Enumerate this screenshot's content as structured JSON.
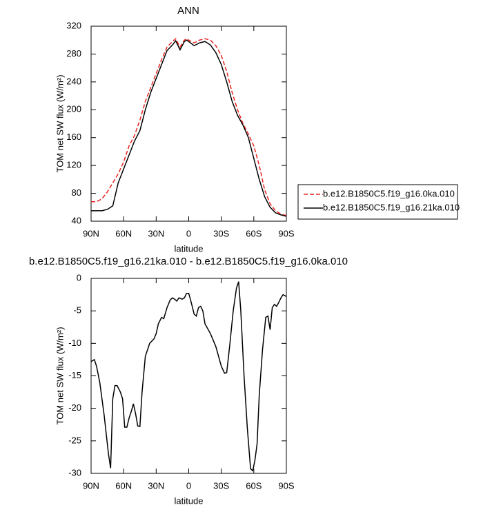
{
  "chart_data": [
    {
      "type": "line",
      "title": "ANN",
      "xlabel": "latitude",
      "ylabel": "TOM net SW flux (W/m²)",
      "x": [
        90,
        85,
        80,
        75,
        70,
        65,
        60,
        55,
        50,
        45,
        40,
        35,
        30,
        25,
        20,
        15,
        12,
        8,
        4,
        2,
        0,
        -5,
        -10,
        -15,
        -20,
        -25,
        -30,
        -35,
        -40,
        -45,
        -50,
        -55,
        -60,
        -65,
        -70,
        -75,
        -80,
        -85,
        -90
      ],
      "xlim": [
        90,
        -90
      ],
      "xticks": [
        {
          "value": 90,
          "label": "90N"
        },
        {
          "value": 60,
          "label": "60N"
        },
        {
          "value": 30,
          "label": "30N"
        },
        0,
        {
          "value": -30,
          "label": "30S"
        },
        {
          "value": -60,
          "label": "60S"
        },
        {
          "value": -90,
          "label": "90S"
        }
      ],
      "ylim": [
        40,
        320
      ],
      "yticks": [
        40,
        80,
        120,
        160,
        200,
        240,
        280,
        320
      ],
      "legend": "right",
      "series": [
        {
          "name": "b.e12.B1850C5.f19_g16.0ka.010",
          "color": "#e8231f",
          "linestyle": "dashed",
          "values": [
            68,
            68,
            72,
            82,
            95,
            108,
            125,
            148,
            163,
            185,
            212,
            232,
            252,
            272,
            290,
            298,
            302,
            290,
            300,
            302,
            300,
            296,
            300,
            302,
            300,
            292,
            278,
            255,
            225,
            200,
            180,
            165,
            148,
            120,
            85,
            65,
            55,
            50,
            48
          ]
        },
        {
          "name": "b.e12.B1850C5.f19_g16.21ka.010",
          "color": "#000000",
          "linestyle": "solid",
          "values": [
            55,
            55,
            55,
            57,
            62,
            95,
            115,
            135,
            155,
            170,
            200,
            225,
            245,
            265,
            285,
            293,
            299,
            286,
            298,
            300,
            298,
            292,
            296,
            298,
            293,
            282,
            265,
            240,
            212,
            192,
            178,
            160,
            130,
            100,
            75,
            60,
            52,
            49,
            47
          ]
        }
      ]
    },
    {
      "type": "line",
      "title": "b.e12.B1850C5.f19_g16.21ka.010 - b.e12.B1850C5.f19_g16.0ka.010",
      "xlabel": "latitude",
      "ylabel": "TOM net SW flux (W/m²)",
      "x": [
        90,
        87,
        85,
        82,
        78,
        74,
        72,
        70,
        68,
        66,
        63,
        61,
        59,
        57,
        55,
        53,
        51,
        49,
        47,
        45,
        43,
        40,
        36,
        32,
        30,
        28,
        25,
        23,
        20,
        17,
        15,
        13,
        11,
        9,
        6,
        4,
        2,
        0,
        -2,
        -5,
        -7,
        -9,
        -11,
        -13,
        -15,
        -20,
        -25,
        -30,
        -33,
        -35,
        -38,
        -41,
        -44,
        -46,
        -48,
        -51,
        -54,
        -57,
        -59,
        -61,
        -63,
        -65,
        -68,
        -71,
        -73,
        -75,
        -77,
        -79,
        -81,
        -83,
        -85,
        -87,
        -90
      ],
      "xlim": [
        90,
        -90
      ],
      "xticks": [
        {
          "value": 90,
          "label": "90N"
        },
        {
          "value": 60,
          "label": "60N"
        },
        {
          "value": 30,
          "label": "30N"
        },
        0,
        {
          "value": -30,
          "label": "30S"
        },
        {
          "value": -60,
          "label": "60S"
        },
        {
          "value": -90,
          "label": "90S"
        }
      ],
      "ylim": [
        -30,
        0
      ],
      "yticks": [
        -30,
        -25,
        -20,
        -15,
        -10,
        -5,
        0
      ],
      "series": [
        {
          "color": "#000000",
          "linestyle": "solid",
          "values": [
            -12.8,
            -12.5,
            -13.5,
            -16,
            -21,
            -27,
            -29.2,
            -18.5,
            -16.5,
            -16.5,
            -17.5,
            -18.5,
            -22.9,
            -22.9,
            -21.5,
            -20.5,
            -19.3,
            -20.8,
            -22.7,
            -22.8,
            -17.5,
            -12,
            -10,
            -9.3,
            -8.5,
            -7,
            -6,
            -6.2,
            -4.5,
            -3.3,
            -3,
            -3.2,
            -3.5,
            -3,
            -3.2,
            -3,
            -2.3,
            -2.3,
            -3.5,
            -5.5,
            -5.8,
            -4.5,
            -4.3,
            -5,
            -7,
            -8.5,
            -10.5,
            -13.5,
            -14.6,
            -14.5,
            -10,
            -5,
            -1.5,
            -0.5,
            -5,
            -15,
            -23,
            -29.3,
            -29.6,
            -28,
            -25.5,
            -18,
            -11,
            -6,
            -5.8,
            -7.9,
            -4.5,
            -4,
            -4.3,
            -3.7,
            -3,
            -2.5,
            -2.8
          ]
        }
      ]
    }
  ]
}
